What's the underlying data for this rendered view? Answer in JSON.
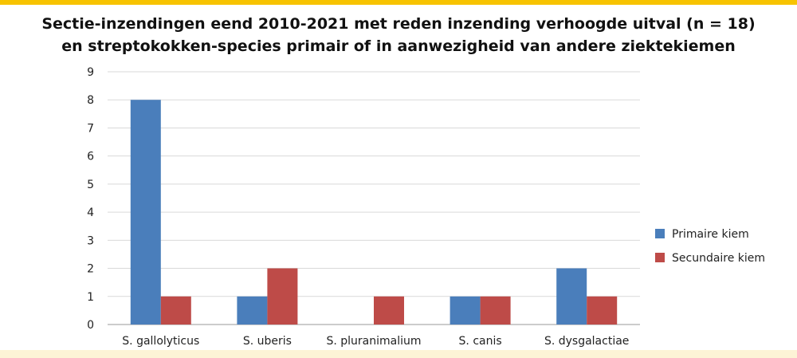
{
  "chart_data": {
    "type": "bar",
    "title_line1": "Sectie-inzendingen eend 2010-2021 met reden inzending verhoogde uitval (n = 18)",
    "title_line2": "en streptokokken-species primair of in aanwezigheid van andere ziektekiemen",
    "categories": [
      "S. gallolyticus",
      "S. uberis",
      "S. pluranimalium",
      "S. canis",
      "S. dysgalactiae"
    ],
    "series": [
      {
        "name": "Primaire kiem",
        "color": "#4a7ebb",
        "values": [
          8,
          1,
          0,
          1,
          2
        ]
      },
      {
        "name": "Secundaire kiem",
        "color": "#be4b48",
        "values": [
          1,
          2,
          1,
          1,
          1
        ]
      }
    ],
    "yticks": [
      "0",
      "1",
      "2",
      "3",
      "4",
      "5",
      "6",
      "7",
      "8",
      "9"
    ],
    "ylim": [
      0,
      9
    ],
    "grid": true,
    "legend_position": "right"
  }
}
